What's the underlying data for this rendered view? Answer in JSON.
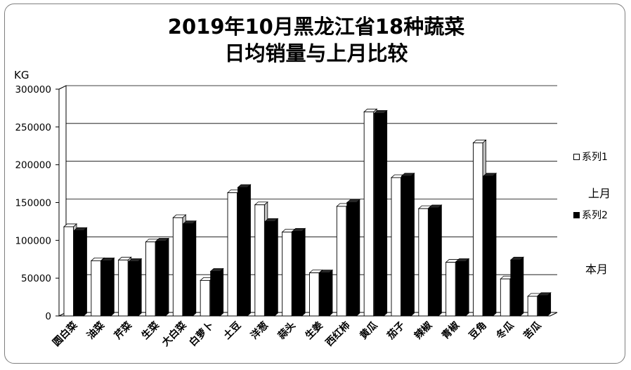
{
  "chart_data": {
    "type": "bar",
    "title_line1": "2019年10月黑龙江省18种蔬菜",
    "title_line2": "日均销量与上月比较",
    "unit_label": "KG",
    "ylim": [
      0,
      300000
    ],
    "yticks": [
      0,
      50000,
      100000,
      150000,
      200000,
      250000,
      300000
    ],
    "grid": true,
    "categories": [
      "圆白菜",
      "油菜",
      "芹菜",
      "生菜",
      "大白菜",
      "白萝卜",
      "土豆",
      "洋葱",
      "蒜头",
      "生姜",
      "西红柿",
      "黄瓜",
      "茄子",
      "辣椒",
      "青椒",
      "豆角",
      "冬瓜",
      "苦瓜"
    ],
    "series": [
      {
        "name": "系列1",
        "color": "#ffffff",
        "values": [
          118000,
          73000,
          74000,
          98000,
          130000,
          47000,
          163000,
          147000,
          111000,
          57000,
          145000,
          270000,
          183000,
          142000,
          71000,
          229000,
          49000,
          26000
        ]
      },
      {
        "name": "系列2",
        "color": "#000000",
        "values": [
          113000,
          73000,
          72000,
          99000,
          122000,
          59000,
          170000,
          125000,
          112000,
          57000,
          150000,
          268000,
          185000,
          143000,
          72000,
          185000,
          74000,
          27000
        ]
      }
    ],
    "legend_position": "right",
    "annotations": [
      "上月",
      "本月"
    ]
  }
}
